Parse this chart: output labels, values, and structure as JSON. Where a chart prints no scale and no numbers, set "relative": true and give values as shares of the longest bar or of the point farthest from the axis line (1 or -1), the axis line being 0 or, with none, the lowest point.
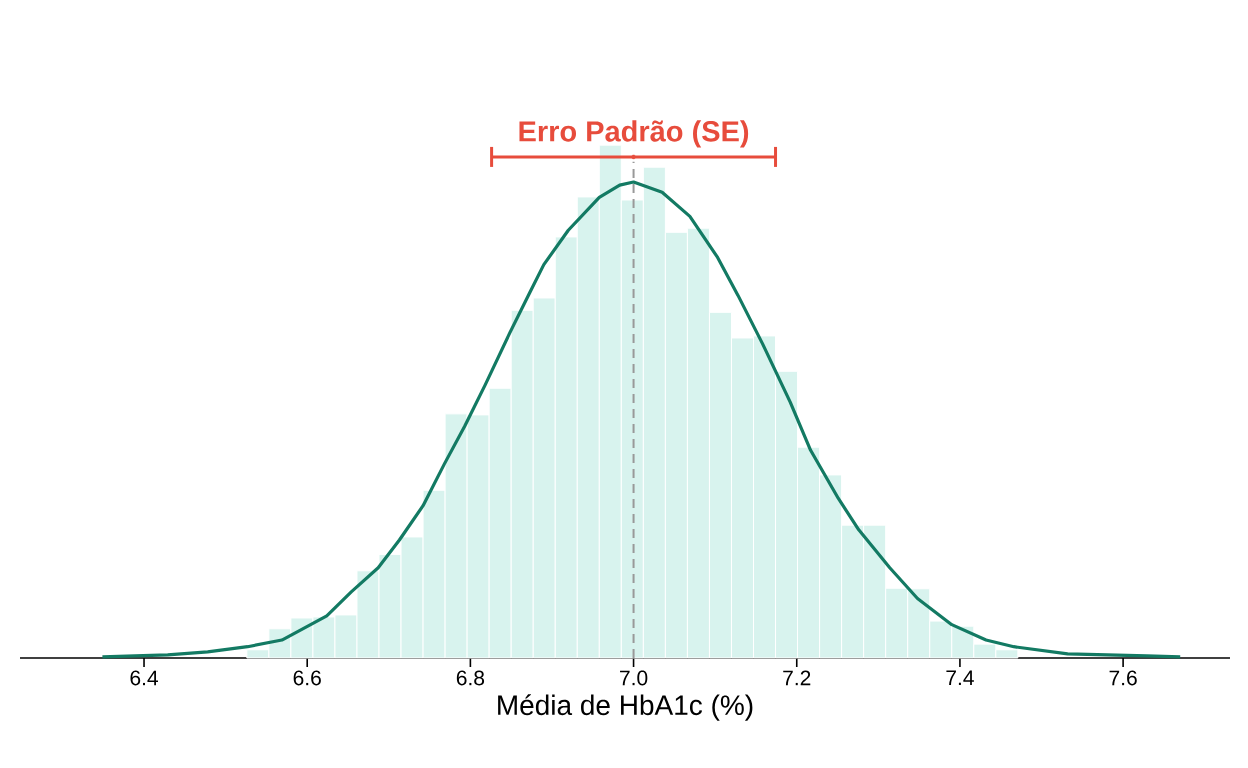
{
  "chart_data": {
    "type": "histogram",
    "relative": true,
    "xlabel": "Média de HbA1c (%)",
    "xlim": [
      6.248,
      7.731
    ],
    "xticks": [
      {
        "value": 6.4,
        "label": "6.4"
      },
      {
        "value": 6.6,
        "label": "6.6"
      },
      {
        "value": 6.8,
        "label": "6.8"
      },
      {
        "value": 7.0,
        "label": "7.0"
      },
      {
        "value": 7.2,
        "label": "7.2"
      },
      {
        "value": 7.4,
        "label": "7.4"
      },
      {
        "value": 7.6,
        "label": "7.6"
      }
    ],
    "series": [
      {
        "color": "#d8f3ee",
        "bins": [
          6.526,
          6.553,
          6.58,
          6.607,
          6.634,
          6.661,
          6.688,
          6.715,
          6.742,
          6.769,
          6.796,
          6.823,
          6.85,
          6.877,
          6.904,
          6.931,
          6.958,
          6.985,
          7.012,
          7.039,
          7.066,
          7.093,
          7.12,
          7.147,
          7.174,
          7.201,
          7.228,
          7.255,
          7.282,
          7.309,
          7.336,
          7.363,
          7.39,
          7.417,
          7.444,
          7.471
        ],
        "values": [
          0.016,
          0.057,
          0.078,
          0.08,
          0.084,
          0.17,
          0.202,
          0.236,
          0.327,
          0.476,
          0.474,
          0.526,
          0.678,
          0.702,
          0.821,
          0.899,
          1,
          0.893,
          0.957,
          0.83,
          0.838,
          0.674,
          0.624,
          0.628,
          0.559,
          0.411,
          0.357,
          0.259,
          0.259,
          0.136,
          0.135,
          0.072,
          0.062,
          0.027,
          0.016
        ]
      },
      {
        "type": "line",
        "color": "#137a63",
        "x": [
          6.349,
          6.429,
          6.478,
          6.527,
          6.569,
          6.624,
          6.654,
          6.687,
          6.713,
          6.742,
          6.768,
          6.793,
          6.818,
          6.848,
          6.873,
          6.89,
          6.92,
          6.958,
          6.983,
          7.0,
          7.035,
          7.069,
          7.103,
          7.128,
          7.158,
          7.192,
          7.217,
          7.251,
          7.276,
          7.314,
          7.348,
          7.39,
          7.432,
          7.466,
          7.532,
          7.629,
          7.67
        ],
        "values": [
          0.002,
          0.006,
          0.012,
          0.022,
          0.035,
          0.082,
          0.129,
          0.176,
          0.23,
          0.297,
          0.378,
          0.452,
          0.532,
          0.633,
          0.713,
          0.767,
          0.834,
          0.898,
          0.922,
          0.928,
          0.908,
          0.861,
          0.781,
          0.707,
          0.613,
          0.499,
          0.405,
          0.311,
          0.25,
          0.176,
          0.116,
          0.065,
          0.035,
          0.022,
          0.008,
          0.004,
          0.002
        ]
      },
      {
        "type": "scatter",
        "color": "#e74c3c",
        "x": [
          7.0
        ],
        "values": [
          0.977
        ],
        "xerrors": [
          0.174
        ]
      }
    ],
    "ref_lines": [
      {
        "axis": "x",
        "value": 7.0,
        "color": "#999999",
        "line_style": "dashed"
      }
    ],
    "annotations": [
      {
        "text": "Erro Padrão (SE)",
        "x": 7.0,
        "y": 0.977
      }
    ]
  }
}
